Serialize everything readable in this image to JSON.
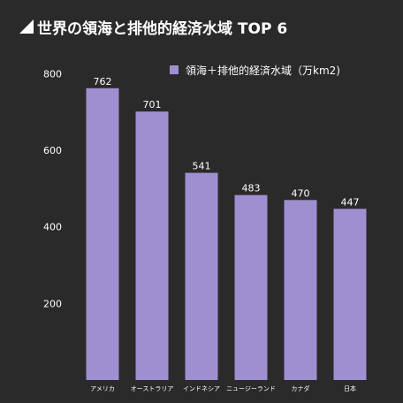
{
  "title": "世界の領海と排他的経済水域 TOP 6",
  "colors": {
    "background": "#2a2a2a",
    "bar": "#a08fd0",
    "text": "#ffffff",
    "title_mark": "#ffffff"
  },
  "chart_data": {
    "type": "bar",
    "title": "世界の領海と排他的経済水域 TOP 6",
    "categories": [
      "アメリカ",
      "オーストラリア",
      "インドネシア",
      "ニュージーランド",
      "カナダ",
      "日本"
    ],
    "series": [
      {
        "name": "領海＋排他的経済水域（万km2)",
        "values": [
          762,
          701,
          541,
          483,
          470,
          447
        ]
      }
    ],
    "xlabel": "",
    "ylabel": "",
    "ylim": [
      0,
      900
    ],
    "yticks": [
      200,
      400,
      600,
      800
    ],
    "grid": false,
    "legend": "top-right",
    "data_labels": true
  }
}
